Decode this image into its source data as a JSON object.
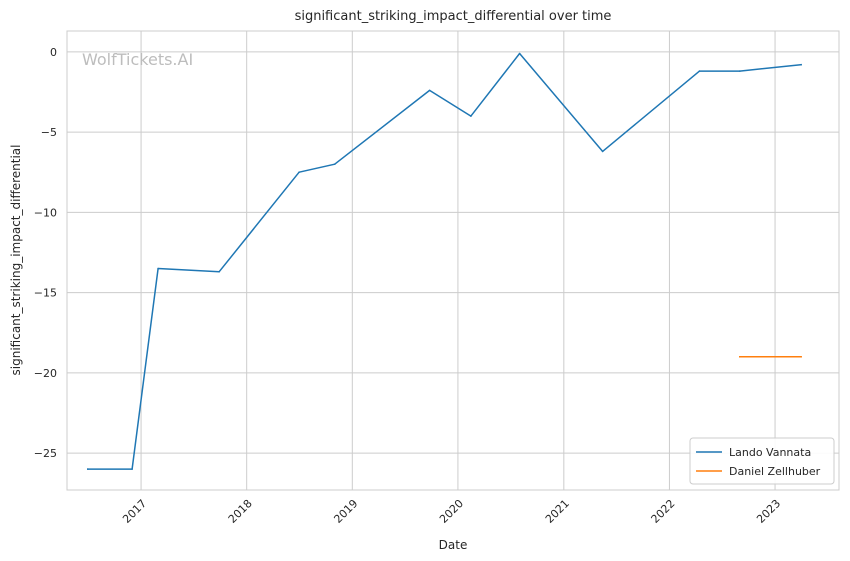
{
  "chart_data": {
    "type": "line",
    "title": "significant_striking_impact_differential over time",
    "xlabel": "Date",
    "ylabel": "significant_striking_impact_differential",
    "watermark": "WolfTickets.AI",
    "xlim": [
      "2016-04-20",
      "2023-08-10"
    ],
    "ylim": [
      -27.3,
      1.3
    ],
    "x_ticks": [
      "2017-01-01",
      "2018-01-01",
      "2019-01-01",
      "2020-01-01",
      "2021-01-01",
      "2022-01-01",
      "2023-01-01"
    ],
    "x_tick_labels": [
      "2017",
      "2018",
      "2019",
      "2020",
      "2021",
      "2022",
      "2023"
    ],
    "y_ticks": [
      0,
      -5,
      -10,
      -15,
      -20,
      -25
    ],
    "y_tick_labels": [
      "0",
      "−5",
      "−10",
      "−15",
      "−20",
      "−25"
    ],
    "grid": true,
    "legend_position": "bottom-right",
    "series": [
      {
        "name": "Lando Vannata",
        "color": "#1f77b4",
        "points": [
          [
            "2016-07-01",
            -26.0
          ],
          [
            "2016-12-01",
            -26.0
          ],
          [
            "2017-03-01",
            -13.5
          ],
          [
            "2017-09-28",
            -13.7
          ],
          [
            "2018-07-01",
            -7.5
          ],
          [
            "2018-11-01",
            -7.0
          ],
          [
            "2019-09-25",
            -2.4
          ],
          [
            "2020-02-15",
            -4.0
          ],
          [
            "2020-08-01",
            -0.1
          ],
          [
            "2021-05-15",
            -6.2
          ],
          [
            "2022-04-15",
            -1.2
          ],
          [
            "2022-09-01",
            -1.2
          ],
          [
            "2023-04-01",
            -0.8
          ]
        ]
      },
      {
        "name": "Daniel Zellhuber",
        "color": "#ff7f0e",
        "points": [
          [
            "2022-09-01",
            -19.0
          ],
          [
            "2023-04-01",
            -19.0
          ]
        ]
      }
    ]
  }
}
